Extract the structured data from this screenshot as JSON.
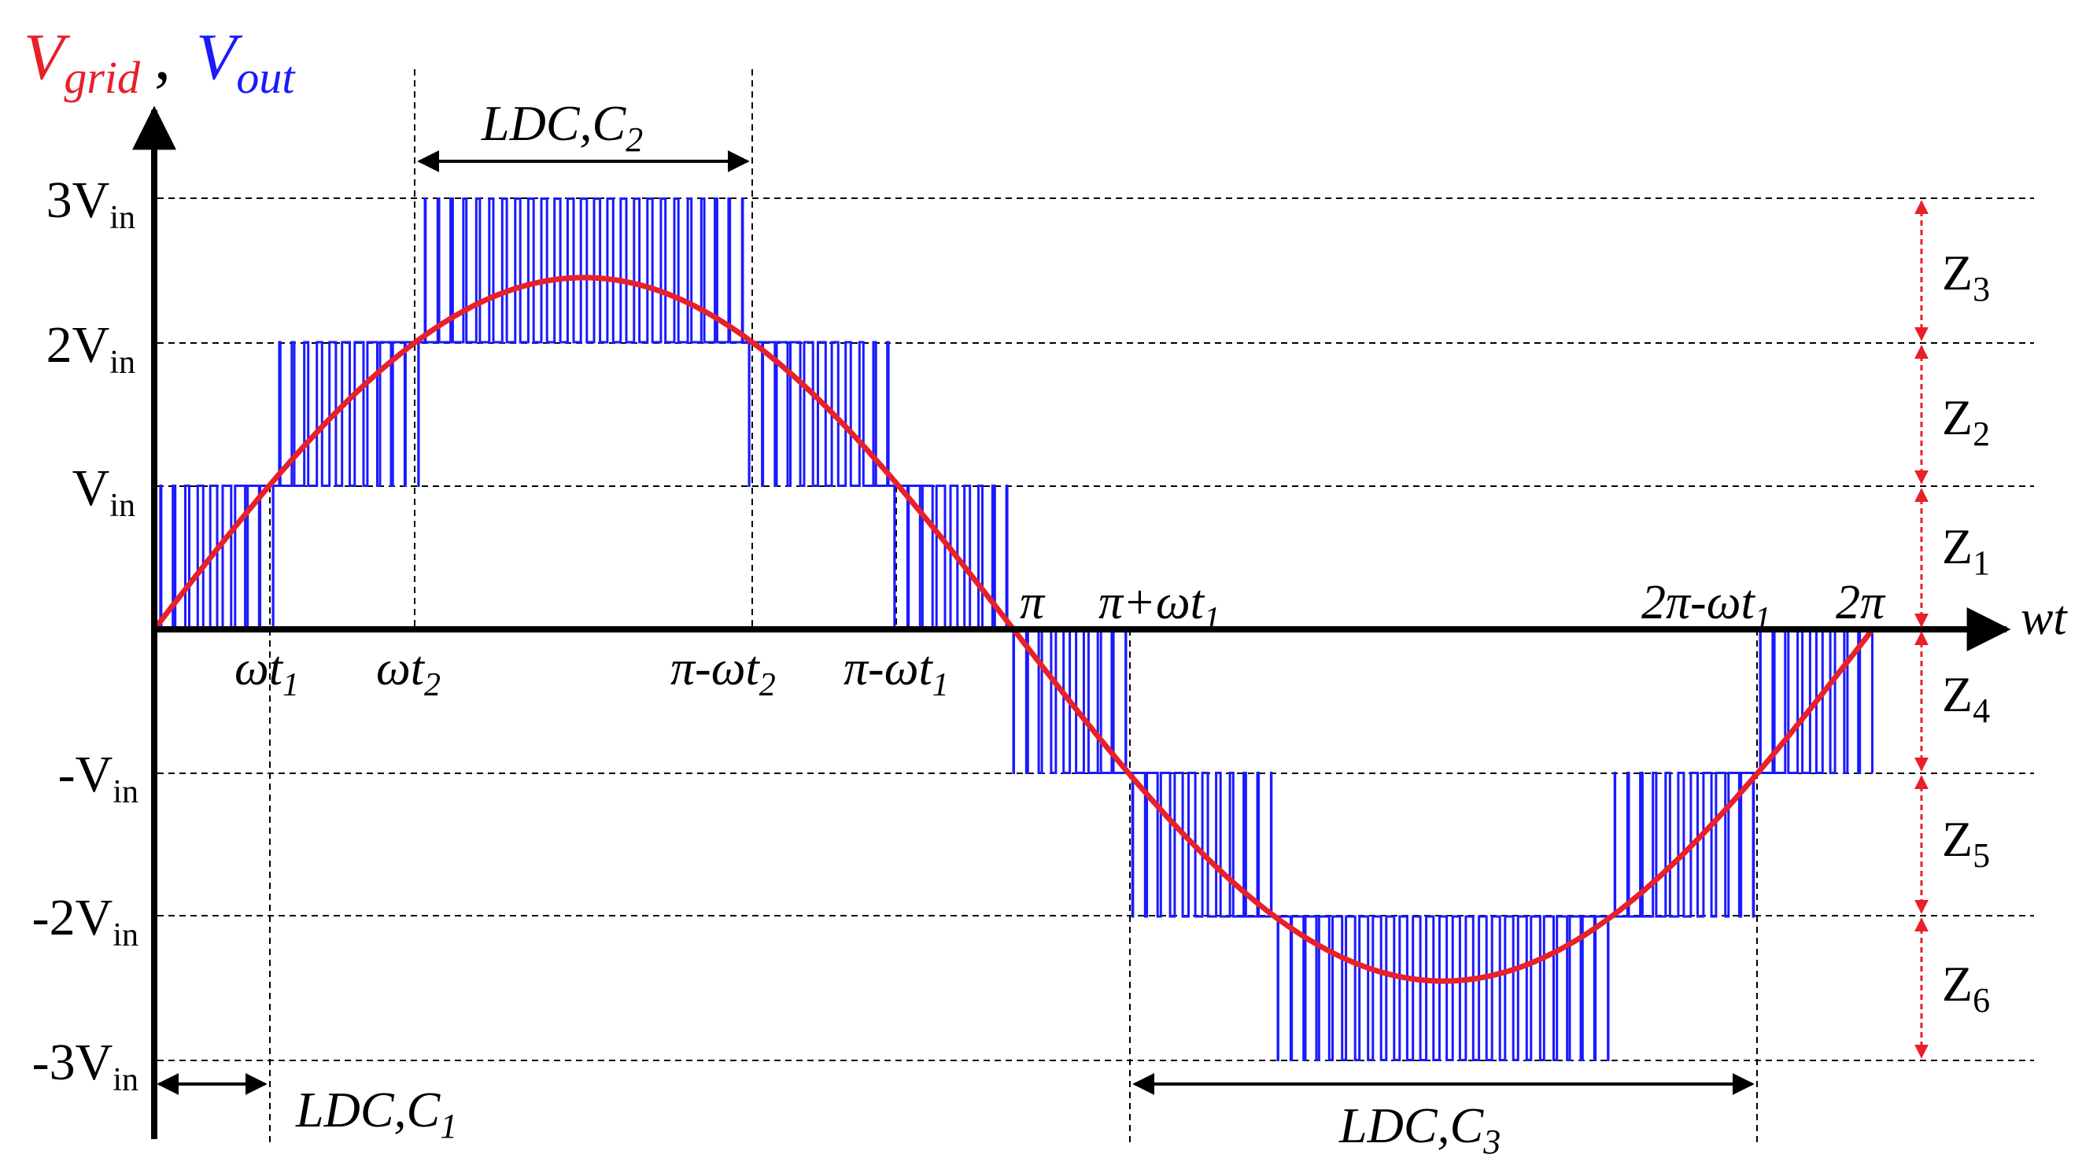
{
  "title": {
    "vgrid_main": "V",
    "vgrid_sub": "grid",
    "separator": ",",
    "vout_main": "V",
    "vout_sub": "out",
    "vgrid_color": "#e8202a",
    "vout_color": "#1a1aff"
  },
  "x_axis_label": "wt",
  "levels": [
    {
      "value": 3,
      "main": "3V",
      "sub": "in"
    },
    {
      "value": 2,
      "main": "2V",
      "sub": "in"
    },
    {
      "value": 1,
      "main": "V",
      "sub": "in"
    },
    {
      "value": -1,
      "main": "-V",
      "sub": "in"
    },
    {
      "value": -2,
      "main": "-2V",
      "sub": "in"
    },
    {
      "value": -3,
      "main": "-3V",
      "sub": "in"
    }
  ],
  "time_markers": [
    {
      "main": "ωt",
      "sub": "1"
    },
    {
      "main": "ωt",
      "sub": "2"
    },
    {
      "main": "π-ωt",
      "sub": "2"
    },
    {
      "main": "π-ωt",
      "sub": "1"
    },
    {
      "main": "π",
      "sub": ""
    },
    {
      "main": "π+ωt",
      "sub": "1"
    },
    {
      "main": "2π-ωt",
      "sub": "1"
    },
    {
      "main": "2π",
      "sub": ""
    }
  ],
  "zones": [
    {
      "main": "Z",
      "sub": "3"
    },
    {
      "main": "Z",
      "sub": "2"
    },
    {
      "main": "Z",
      "sub": "1"
    },
    {
      "main": "Z",
      "sub": "4"
    },
    {
      "main": "Z",
      "sub": "5"
    },
    {
      "main": "Z",
      "sub": "6"
    }
  ],
  "ldc_labels": [
    {
      "main": "LDC,C",
      "sub": "1"
    },
    {
      "main": "LDC,C",
      "sub": "2"
    },
    {
      "main": "LDC,C",
      "sub": "3"
    }
  ],
  "colors": {
    "axis": "#000000",
    "grid_sine": "#e8202a",
    "pwm": "#1a1aff",
    "zone_arrow": "#e8202a"
  }
}
